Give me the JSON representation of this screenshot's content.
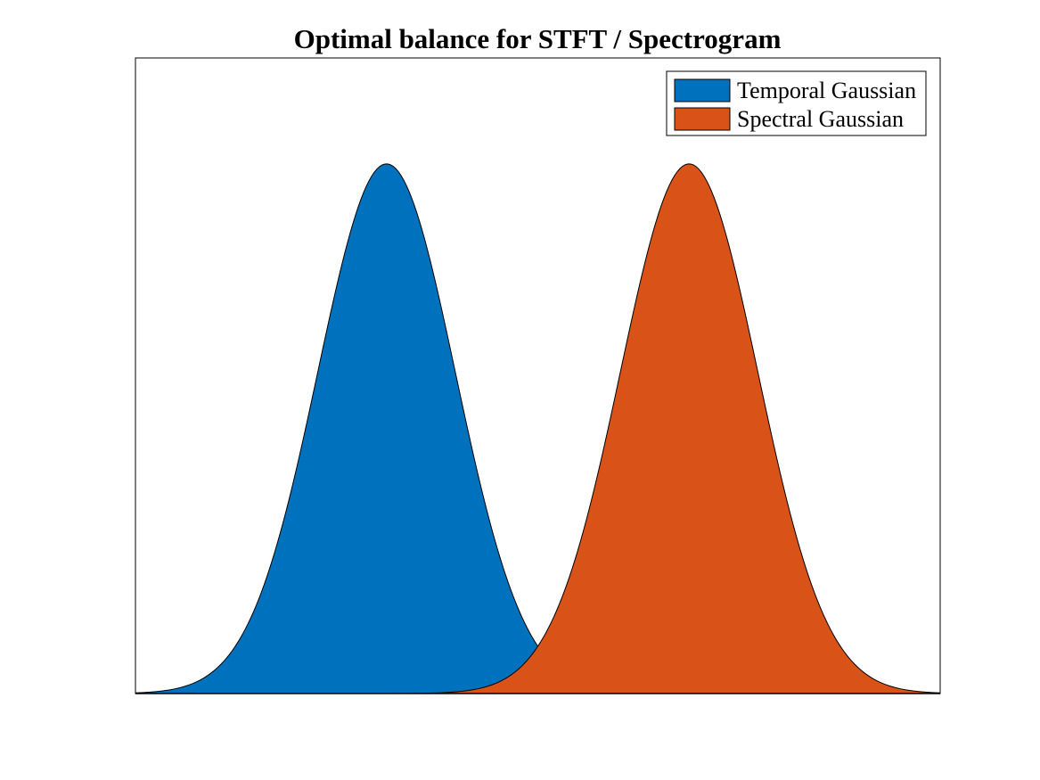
{
  "chart_data": {
    "type": "area",
    "title": "Optimal balance for STFT / Spectrogram",
    "xlabel": "",
    "ylabel": "",
    "x_ticks": [],
    "y_ticks": [],
    "xlim": [
      0,
      1
    ],
    "ylim": [
      0,
      1.2
    ],
    "grid": false,
    "legend_position": "top-right",
    "series": [
      {
        "name": "Temporal Gaussian",
        "kind": "gaussian",
        "mean": 0.312,
        "std": 0.0855,
        "peak": 1.0,
        "color": "#0072BD"
      },
      {
        "name": "Spectral Gaussian",
        "kind": "gaussian",
        "mean": 0.688,
        "std": 0.0855,
        "peak": 1.0,
        "color": "#D95319"
      }
    ]
  }
}
